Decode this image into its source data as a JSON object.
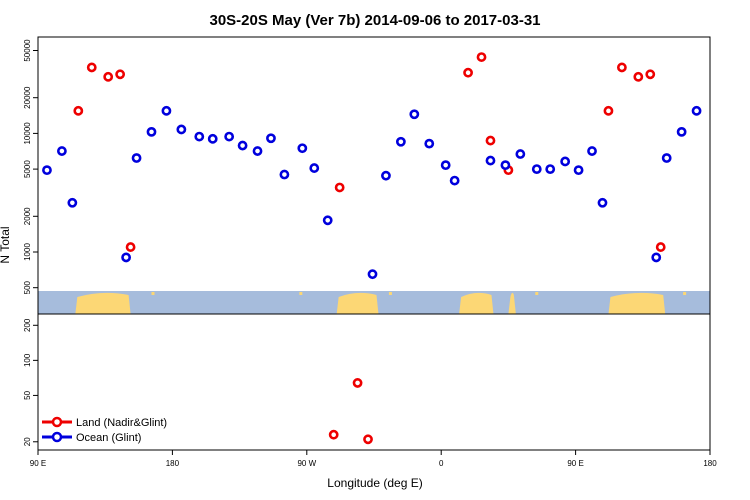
{
  "chart_data": {
    "type": "scatter",
    "title": "30S-20S May (Ver 7b)   2014-09-06 to 2017-03-31",
    "xlabel": "Longitude (deg E)",
    "ylabel": "N Total",
    "x_axis": {
      "range": [
        90,
        540
      ],
      "ticks": [
        90,
        180,
        270,
        360,
        450,
        540
      ],
      "tick_labels": [
        "90 E",
        "180",
        "90 W",
        "0",
        "90 E",
        "180"
      ]
    },
    "y_axis": {
      "scale": "log",
      "upper_panel": {
        "range": [
          300,
          65000
        ],
        "ticks": [
          500,
          1000,
          2000,
          5000,
          10000,
          20000,
          50000
        ],
        "tick_labels": [
          "500",
          "1000",
          "2000",
          "5000",
          "10000",
          "20000",
          "50000"
        ]
      },
      "lower_panel": {
        "range": [
          17,
          250
        ],
        "ticks": [
          20,
          50,
          100,
          200
        ],
        "tick_labels": [
          "20",
          "50",
          "100",
          "200"
        ]
      }
    },
    "colors": {
      "land": "#ee0000",
      "ocean": "#0000dd",
      "map_ocean": "#a6bcdc",
      "map_land": "#fcd775"
    },
    "series": [
      {
        "name": "Land (Nadir&Glint)",
        "color": "#ee0000",
        "points": [
          {
            "x": 117,
            "y": 15500
          },
          {
            "x": 126,
            "y": 36000
          },
          {
            "x": 137,
            "y": 30000
          },
          {
            "x": 145,
            "y": 31500
          },
          {
            "x": 152,
            "y": 1100
          },
          {
            "x": 292,
            "y": 3500
          },
          {
            "x": 288,
            "y": 23
          },
          {
            "x": 304,
            "y": 64
          },
          {
            "x": 311,
            "y": 21
          },
          {
            "x": 378,
            "y": 32500
          },
          {
            "x": 387,
            "y": 44000
          },
          {
            "x": 393,
            "y": 8700
          },
          {
            "x": 405,
            "y": 4900
          },
          {
            "x": 472,
            "y": 15500
          },
          {
            "x": 481,
            "y": 36000
          },
          {
            "x": 492,
            "y": 30000
          },
          {
            "x": 500,
            "y": 31500
          },
          {
            "x": 507,
            "y": 1100
          }
        ]
      },
      {
        "name": "Ocean (Glint)",
        "color": "#0000dd",
        "points": [
          {
            "x": 96,
            "y": 4900
          },
          {
            "x": 106,
            "y": 7100
          },
          {
            "x": 113,
            "y": 2600
          },
          {
            "x": 149,
            "y": 900
          },
          {
            "x": 156,
            "y": 6200
          },
          {
            "x": 166,
            "y": 10300
          },
          {
            "x": 176,
            "y": 15500
          },
          {
            "x": 186,
            "y": 10800
          },
          {
            "x": 198,
            "y": 9400
          },
          {
            "x": 207,
            "y": 9000
          },
          {
            "x": 218,
            "y": 9400
          },
          {
            "x": 227,
            "y": 7900
          },
          {
            "x": 237,
            "y": 7100
          },
          {
            "x": 246,
            "y": 9100
          },
          {
            "x": 255,
            "y": 4500
          },
          {
            "x": 267,
            "y": 7500
          },
          {
            "x": 275,
            "y": 5100
          },
          {
            "x": 284,
            "y": 1850
          },
          {
            "x": 314,
            "y": 650
          },
          {
            "x": 323,
            "y": 4400
          },
          {
            "x": 333,
            "y": 8500
          },
          {
            "x": 342,
            "y": 14500
          },
          {
            "x": 352,
            "y": 8200
          },
          {
            "x": 363,
            "y": 5400
          },
          {
            "x": 369,
            "y": 4000
          },
          {
            "x": 393,
            "y": 5900
          },
          {
            "x": 403,
            "y": 5400
          },
          {
            "x": 413,
            "y": 6700
          },
          {
            "x": 424,
            "y": 5000
          },
          {
            "x": 433,
            "y": 5000
          },
          {
            "x": 443,
            "y": 5800
          },
          {
            "x": 452,
            "y": 4900
          },
          {
            "x": 461,
            "y": 7100
          },
          {
            "x": 468,
            "y": 2600
          },
          {
            "x": 504,
            "y": 900
          },
          {
            "x": 511,
            "y": 6200
          },
          {
            "x": 521,
            "y": 10300
          },
          {
            "x": 531,
            "y": 15500
          }
        ]
      }
    ],
    "legend": {
      "position": "bottom-left",
      "entries": [
        "Land (Nadir&Glint)",
        "Ocean (Glint)"
      ]
    },
    "map_strip": {
      "description_fill": "ocean",
      "land_ranges": [
        [
          115,
          152
        ],
        [
          290,
          318
        ],
        [
          372,
          395
        ],
        [
          405,
          410
        ],
        [
          472,
          510
        ]
      ],
      "small_land": [
        [
          166,
          168
        ],
        [
          265,
          267
        ],
        [
          325,
          327
        ],
        [
          423,
          425
        ],
        [
          522,
          524
        ]
      ]
    }
  }
}
